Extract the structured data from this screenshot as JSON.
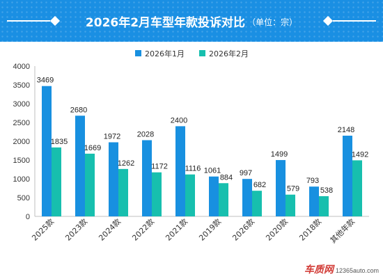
{
  "header": {
    "title": "2026年2月车型年款投诉对比",
    "subtitle": "（单位：宗）"
  },
  "colors": {
    "header_bg": "#1a8fe3",
    "series_1": "#1890e0",
    "series_2": "#17bfae"
  },
  "chart_data": {
    "type": "bar",
    "title": "2026年2月车型年款投诉对比",
    "subtitle": "（单位：宗）",
    "categories": [
      "2025款",
      "2023款",
      "2024款",
      "2022款",
      "2021款",
      "2019款",
      "2026款",
      "2020款",
      "2018款",
      "其他年款"
    ],
    "series": [
      {
        "name": "2026年1月",
        "values": [
          3469,
          2680,
          1972,
          2028,
          2400,
          1061,
          997,
          1499,
          793,
          2148
        ]
      },
      {
        "name": "2026年2月",
        "values": [
          1835,
          1669,
          1262,
          1172,
          1116,
          884,
          682,
          579,
          538,
          1492
        ]
      }
    ],
    "ylim": [
      0,
      4000
    ],
    "yticks": [
      0,
      500,
      1000,
      1500,
      2000,
      2500,
      3000,
      3500,
      4000
    ],
    "grid": false,
    "legend_position": "top"
  },
  "watermark": {
    "logo": "车质网",
    "url": "12365auto.com"
  }
}
